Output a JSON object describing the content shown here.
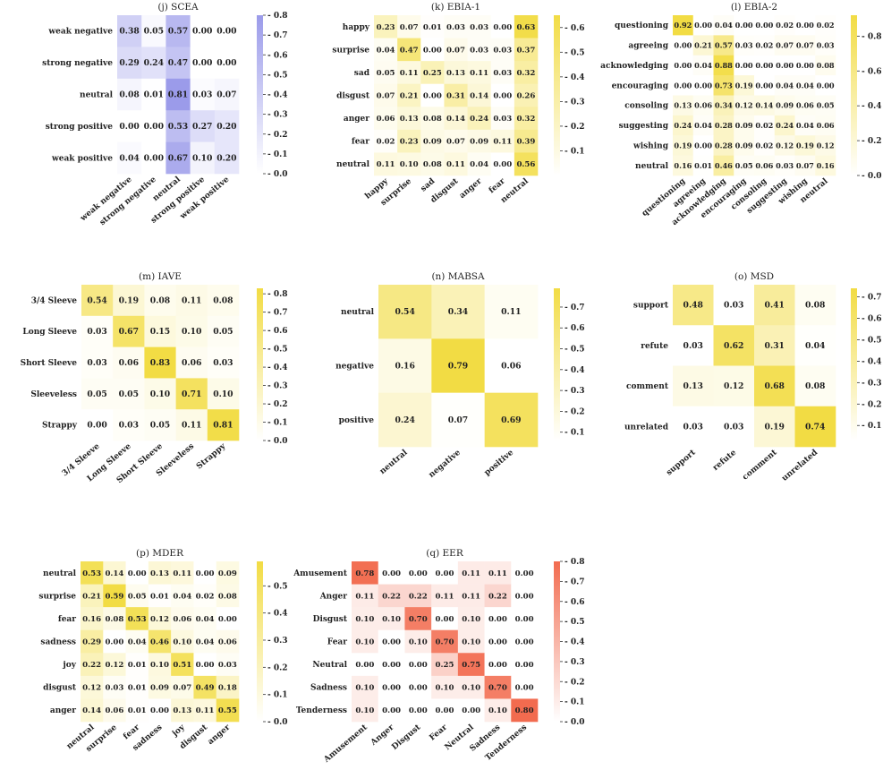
{
  "chart_data": [
    {
      "type": "heatmap",
      "id": "scea",
      "title": "(j) SCEA",
      "color": "#9b9bea",
      "vmin": 0,
      "vmax": 0.8,
      "cbar_ticks": [
        "0.0",
        "0.1",
        "0.2",
        "0.3",
        "0.4",
        "0.5",
        "0.6",
        "0.7",
        "0.8"
      ],
      "row_labels": [
        "weak negative",
        "strong negative",
        "neutral",
        "strong positive",
        "weak positive"
      ],
      "col_labels": [
        "weak negative",
        "strong negative",
        "neutral",
        "strong positive",
        "weak positive"
      ],
      "values": [
        [
          0.38,
          0.05,
          0.57,
          0.0,
          0.0
        ],
        [
          0.29,
          0.24,
          0.47,
          0.0,
          0.0
        ],
        [
          0.08,
          0.01,
          0.81,
          0.03,
          0.07
        ],
        [
          0.0,
          0.0,
          0.53,
          0.27,
          0.2
        ],
        [
          0.04,
          0.0,
          0.67,
          0.1,
          0.2
        ]
      ]
    },
    {
      "type": "heatmap",
      "id": "ebia1",
      "title": "(k) EBIA-1",
      "color": "#f2dc44",
      "vmin": 0,
      "vmax": 0.65,
      "cbar_ticks": [
        "0.1",
        "0.2",
        "0.3",
        "0.4",
        "0.5",
        "0.6"
      ],
      "row_labels": [
        "happy",
        "surprise",
        "sad",
        "disgust",
        "anger",
        "fear",
        "neutral"
      ],
      "col_labels": [
        "happy",
        "surprise",
        "sad",
        "disgust",
        "anger",
        "fear",
        "neutral"
      ],
      "values": [
        [
          0.23,
          0.07,
          0.01,
          0.03,
          0.03,
          0.0,
          0.63
        ],
        [
          0.04,
          0.47,
          0.0,
          0.07,
          0.03,
          0.03,
          0.37
        ],
        [
          0.05,
          0.11,
          0.25,
          0.13,
          0.11,
          0.03,
          0.32
        ],
        [
          0.07,
          0.21,
          0.0,
          0.31,
          0.14,
          0.0,
          0.26
        ],
        [
          0.06,
          0.13,
          0.08,
          0.14,
          0.24,
          0.03,
          0.32
        ],
        [
          0.02,
          0.23,
          0.09,
          0.07,
          0.09,
          0.11,
          0.39
        ],
        [
          0.11,
          0.1,
          0.08,
          0.11,
          0.04,
          0.0,
          0.56
        ]
      ]
    },
    {
      "type": "heatmap",
      "id": "ebia2",
      "title": "(l) EBIA-2",
      "color": "#f2dc44",
      "vmin": 0,
      "vmax": 0.92,
      "cbar_ticks": [
        "0.0",
        "0.2",
        "0.4",
        "0.6",
        "0.8"
      ],
      "row_labels": [
        "questioning",
        "agreeing",
        "acknowledging",
        "encouraging",
        "consoling",
        "suggesting",
        "wishing",
        "neutral"
      ],
      "col_labels": [
        "questioning",
        "agreeing",
        "acknowledging",
        "encouraging",
        "consoling",
        "suggesting",
        "wishing",
        "neutral"
      ],
      "values": [
        [
          0.92,
          0.0,
          0.04,
          0.0,
          0.0,
          0.02,
          0.0,
          0.02
        ],
        [
          0.0,
          0.21,
          0.57,
          0.03,
          0.02,
          0.07,
          0.07,
          0.03
        ],
        [
          0.0,
          0.04,
          0.88,
          0.0,
          0.0,
          0.0,
          0.0,
          0.08
        ],
        [
          0.0,
          0.0,
          0.73,
          0.19,
          0.0,
          0.04,
          0.04,
          0.0
        ],
        [
          0.13,
          0.06,
          0.34,
          0.12,
          0.14,
          0.09,
          0.06,
          0.05
        ],
        [
          0.24,
          0.04,
          0.28,
          0.09,
          0.02,
          0.24,
          0.04,
          0.06
        ],
        [
          0.19,
          0.0,
          0.28,
          0.09,
          0.02,
          0.12,
          0.19,
          0.12
        ],
        [
          0.16,
          0.01,
          0.46,
          0.05,
          0.06,
          0.03,
          0.07,
          0.16
        ]
      ]
    },
    {
      "type": "heatmap",
      "id": "iave",
      "title": "(m) IAVE",
      "color": "#f2dc44",
      "vmin": 0,
      "vmax": 0.83,
      "cbar_ticks": [
        "0.0",
        "0.1",
        "0.2",
        "0.3",
        "0.4",
        "0.5",
        "0.6",
        "0.7",
        "0.8"
      ],
      "row_labels": [
        "3/4 Sleeve",
        "Long Sleeve",
        "Short Sleeve",
        "Sleeveless",
        "Strappy"
      ],
      "col_labels": [
        "3/4 Sleeve",
        "Long Sleeve",
        "Short Sleeve",
        "Sleeveless",
        "Strappy"
      ],
      "values": [
        [
          0.54,
          0.19,
          0.08,
          0.11,
          0.08
        ],
        [
          0.03,
          0.67,
          0.15,
          0.1,
          0.05
        ],
        [
          0.03,
          0.06,
          0.83,
          0.06,
          0.03
        ],
        [
          0.05,
          0.05,
          0.1,
          0.71,
          0.1
        ],
        [
          0.0,
          0.03,
          0.05,
          0.11,
          0.81
        ]
      ]
    },
    {
      "type": "heatmap",
      "id": "mabsa",
      "title": "(n) MABSA",
      "color": "#f2dc44",
      "vmin": 0.06,
      "vmax": 0.79,
      "cbar_ticks": [
        "0.1",
        "0.2",
        "0.3",
        "0.4",
        "0.5",
        "0.6",
        "0.7"
      ],
      "row_labels": [
        "neutral",
        "negative",
        "positive"
      ],
      "col_labels": [
        "neutral",
        "negative",
        "positive"
      ],
      "values": [
        [
          0.54,
          0.34,
          0.11
        ],
        [
          0.16,
          0.79,
          0.06
        ],
        [
          0.24,
          0.07,
          0.69
        ]
      ]
    },
    {
      "type": "heatmap",
      "id": "msd",
      "title": "(o) MSD",
      "color": "#f2dc44",
      "vmin": 0.03,
      "vmax": 0.74,
      "cbar_ticks": [
        "0.1",
        "0.2",
        "0.3",
        "0.4",
        "0.5",
        "0.6",
        "0.7"
      ],
      "row_labels": [
        "support",
        "refute",
        "comment",
        "unrelated"
      ],
      "col_labels": [
        "support",
        "refute",
        "comment",
        "unrelated"
      ],
      "values": [
        [
          0.48,
          0.03,
          0.41,
          0.08
        ],
        [
          0.03,
          0.62,
          0.31,
          0.04
        ],
        [
          0.13,
          0.12,
          0.68,
          0.08
        ],
        [
          0.03,
          0.03,
          0.19,
          0.74
        ]
      ]
    },
    {
      "type": "heatmap",
      "id": "mder",
      "title": "(p) MDER",
      "color": "#f2dc44",
      "vmin": 0,
      "vmax": 0.59,
      "cbar_ticks": [
        "0.0",
        "0.1",
        "0.2",
        "0.3",
        "0.4",
        "0.5"
      ],
      "row_labels": [
        "neutral",
        "surprise",
        "fear",
        "sadness",
        "joy",
        "disgust",
        "anger"
      ],
      "col_labels": [
        "neutral",
        "surprise",
        "fear",
        "sadness",
        "joy",
        "disgust",
        "anger"
      ],
      "values": [
        [
          0.53,
          0.14,
          0.0,
          0.13,
          0.11,
          0.0,
          0.09
        ],
        [
          0.21,
          0.59,
          0.05,
          0.01,
          0.04,
          0.02,
          0.08
        ],
        [
          0.16,
          0.08,
          0.53,
          0.12,
          0.06,
          0.04,
          0.0
        ],
        [
          0.29,
          0.0,
          0.04,
          0.46,
          0.1,
          0.04,
          0.06
        ],
        [
          0.22,
          0.12,
          0.01,
          0.1,
          0.51,
          0.0,
          0.03
        ],
        [
          0.12,
          0.03,
          0.01,
          0.09,
          0.07,
          0.49,
          0.18
        ],
        [
          0.14,
          0.06,
          0.01,
          0.0,
          0.13,
          0.11,
          0.55
        ]
      ]
    },
    {
      "type": "heatmap",
      "id": "eer",
      "title": "(q) EER",
      "color": "#f26b4f",
      "vmin": 0,
      "vmax": 0.8,
      "cbar_ticks": [
        "0.0",
        "0.1",
        "0.2",
        "0.3",
        "0.4",
        "0.5",
        "0.6",
        "0.7",
        "0.8"
      ],
      "row_labels": [
        "Amusement",
        "Anger",
        "Disgust",
        "Fear",
        "Neutral",
        "Sadness",
        "Tenderness"
      ],
      "col_labels": [
        "Amusement",
        "Anger",
        "Disgust",
        "Fear",
        "Neutral",
        "Sadness",
        "Tenderness"
      ],
      "values": [
        [
          0.78,
          0.0,
          0.0,
          0.0,
          0.11,
          0.11,
          0.0
        ],
        [
          0.11,
          0.22,
          0.22,
          0.11,
          0.11,
          0.22,
          0.0
        ],
        [
          0.1,
          0.1,
          0.7,
          0.0,
          0.1,
          0.0,
          0.0
        ],
        [
          0.1,
          0.0,
          0.1,
          0.7,
          0.1,
          0.0,
          0.0
        ],
        [
          0.0,
          0.0,
          0.0,
          0.25,
          0.75,
          0.0,
          0.0
        ],
        [
          0.1,
          0.0,
          0.0,
          0.1,
          0.1,
          0.7,
          0.0
        ],
        [
          0.1,
          0.0,
          0.0,
          0.0,
          0.0,
          0.1,
          0.8
        ]
      ]
    }
  ]
}
